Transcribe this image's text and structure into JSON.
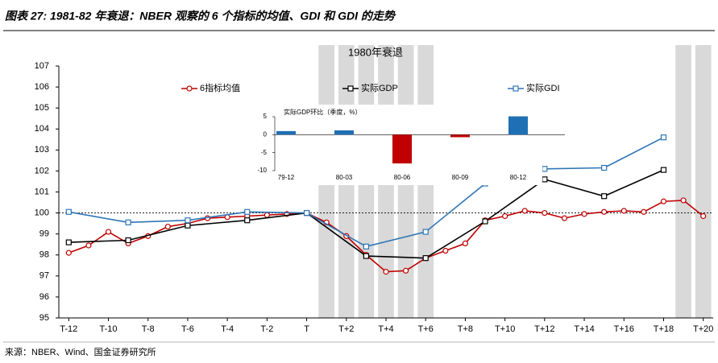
{
  "title": "图表 27: 1981-82 年衰退：NBER 观察的 6 个指标的均值、GDI 和 GDI 的走势",
  "source": "来源：NBER、Wind、国金证券研究所",
  "chart_data": [
    {
      "type": "line",
      "title": "1980年衰退",
      "xlim": [
        -12.5,
        20.5
      ],
      "xticks": [
        {
          "value": -12,
          "label": "T-12"
        },
        {
          "value": -10,
          "label": "T-10"
        },
        {
          "value": -8,
          "label": "T-8"
        },
        {
          "value": -6,
          "label": "T-6"
        },
        {
          "value": -4,
          "label": "T-4"
        },
        {
          "value": -2,
          "label": "T-2"
        },
        {
          "value": 0,
          "label": "T"
        },
        {
          "value": 2,
          "label": "T+2"
        },
        {
          "value": 4,
          "label": "T+4"
        },
        {
          "value": 6,
          "label": "T+6"
        },
        {
          "value": 8,
          "label": "T+8"
        },
        {
          "value": 10,
          "label": "T+10"
        },
        {
          "value": 12,
          "label": "T+12"
        },
        {
          "value": 14,
          "label": "T+14"
        },
        {
          "value": 16,
          "label": "T+16"
        },
        {
          "value": 18,
          "label": "T+18"
        },
        {
          "value": 20,
          "label": "T+20"
        }
      ],
      "ylim": [
        95,
        107
      ],
      "yticks": [
        95,
        96,
        97,
        98,
        99,
        100,
        101,
        102,
        103,
        104,
        105,
        106,
        107
      ],
      "refline": 100,
      "shade_color": "#d9d9d9",
      "shaded_x": [
        1,
        2,
        3,
        4,
        5,
        6,
        19,
        20
      ],
      "series": [
        {
          "name": "6指标均值",
          "color": "#c00000",
          "marker": "circle",
          "x": [
            -12,
            -11,
            -10,
            -9,
            -8,
            -7,
            -6,
            -5,
            -4,
            -3,
            -2,
            -1,
            0,
            1,
            2,
            3,
            4,
            5,
            6,
            7,
            8,
            9,
            10,
            11,
            12,
            13,
            14,
            15,
            16,
            17,
            18,
            19,
            20
          ],
          "values": [
            98.1,
            98.45,
            99.1,
            98.55,
            98.9,
            99.35,
            99.5,
            99.75,
            99.8,
            99.85,
            99.9,
            99.95,
            100,
            99.55,
            98.9,
            98.0,
            97.2,
            97.25,
            97.85,
            98.2,
            98.55,
            99.65,
            99.85,
            100.1,
            100.0,
            99.75,
            99.95,
            100.05,
            100.1,
            100.05,
            100.55,
            100.6,
            99.85
          ]
        },
        {
          "name": "实际GDP",
          "color": "#000000",
          "marker": "square",
          "x": [
            -12,
            -9,
            -6,
            -3,
            0,
            3,
            6,
            9,
            12,
            15,
            18
          ],
          "values": [
            98.6,
            98.7,
            99.4,
            99.65,
            100,
            97.95,
            97.85,
            99.6,
            101.6,
            100.8,
            102.05
          ]
        },
        {
          "name": "实际GDI",
          "color": "#2e75b6",
          "marker": "square",
          "x": [
            -12,
            -9,
            -6,
            -3,
            0,
            3,
            6,
            9,
            12,
            15,
            18
          ],
          "values": [
            100.05,
            99.55,
            99.65,
            100.05,
            100,
            98.4,
            99.1,
            101.4,
            102.1,
            102.15,
            103.6
          ]
        }
      ]
    },
    {
      "type": "bar",
      "title": "实际GDP环比（季度，%）",
      "categories": [
        "79-12",
        "80-03",
        "80-06",
        "80-09",
        "80-12"
      ],
      "values": [
        1,
        1.2,
        -8,
        -0.7,
        5.1
      ],
      "colors": [
        "#1f6fb4",
        "#1f6fb4",
        "#c00000",
        "#c00000",
        "#1f6fb4"
      ],
      "ylim": [
        -10,
        5
      ],
      "yticks": [
        5,
        0,
        -5,
        -10
      ]
    }
  ]
}
